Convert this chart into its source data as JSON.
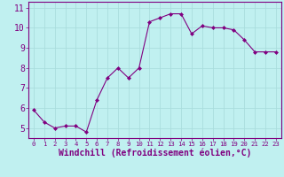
{
  "x": [
    0,
    1,
    2,
    3,
    4,
    5,
    6,
    7,
    8,
    9,
    10,
    11,
    12,
    13,
    14,
    15,
    16,
    17,
    18,
    19,
    20,
    21,
    22,
    23
  ],
  "y": [
    5.9,
    5.3,
    5.0,
    5.1,
    5.1,
    4.8,
    6.4,
    7.5,
    8.0,
    7.5,
    8.0,
    10.3,
    10.5,
    10.7,
    10.7,
    9.7,
    10.1,
    10.0,
    10.0,
    9.9,
    9.4,
    8.8,
    8.8,
    8.8
  ],
  "line_color": "#800080",
  "marker_color": "#800080",
  "bg_color": "#c0f0f0",
  "grid_color": "#aadddd",
  "xlabel": "Windchill (Refroidissement éolien,°C)",
  "xlabel_color": "#800080",
  "tick_color": "#800080",
  "ylim": [
    4.5,
    11.3
  ],
  "xlim": [
    -0.5,
    23.5
  ],
  "yticks": [
    5,
    6,
    7,
    8,
    9,
    10,
    11
  ],
  "xtick_labels": [
    "0",
    "1",
    "2",
    "3",
    "4",
    "5",
    "6",
    "7",
    "8",
    "9",
    "10",
    "11",
    "12",
    "13",
    "14",
    "15",
    "16",
    "17",
    "18",
    "19",
    "20",
    "21",
    "22",
    "23"
  ],
  "y_fontsize": 7.0,
  "x_fontsize": 5.2,
  "xlabel_fontsize": 7.0
}
